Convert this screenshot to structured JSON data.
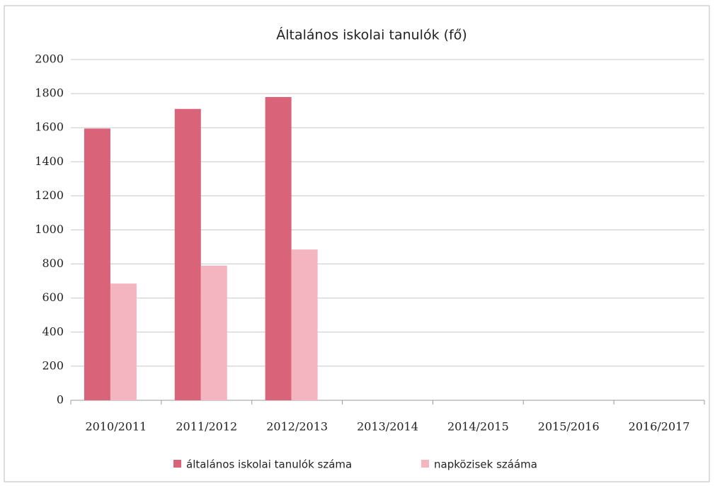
{
  "chart_data": {
    "type": "bar",
    "title": "Általános iskolai tanulók (fő)",
    "categories": [
      "2010/2011",
      "2011/2012",
      "2012/2013",
      "2013/2014",
      "2014/2015",
      "2015/2016",
      "2016/2017"
    ],
    "series": [
      {
        "name": "általános iskolai tanulók száma",
        "color": "#d9647a",
        "values": [
          1595,
          1710,
          1780,
          null,
          null,
          null,
          null
        ]
      },
      {
        "name": "napközisek szááma",
        "color": "#f4b4c0",
        "values": [
          685,
          790,
          885,
          null,
          null,
          null,
          null
        ]
      }
    ],
    "ylim": [
      0,
      2000
    ],
    "yticks": [
      0,
      200,
      400,
      600,
      800,
      1000,
      1200,
      1400,
      1600,
      1800,
      2000
    ],
    "grid": true,
    "legend": "bottom"
  }
}
